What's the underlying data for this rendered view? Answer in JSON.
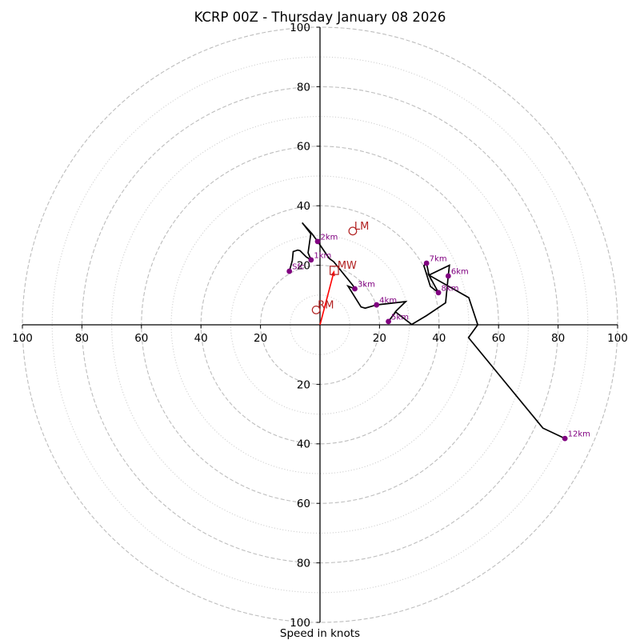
{
  "chart_data": {
    "type": "line",
    "subtype": "hodograph",
    "title": "KCRP 00Z - Thursday January 08 2026",
    "xlabel": "Speed in knots",
    "ylabel": "",
    "units": "knots",
    "xlim": [
      -100,
      100
    ],
    "ylim": [
      -100,
      100
    ],
    "grid": true,
    "rings": {
      "major": [
        20,
        40,
        60,
        80,
        100
      ],
      "minor": [
        10,
        30,
        50,
        70,
        90
      ]
    },
    "x_ticks": [
      {
        "value": -100,
        "label": "100"
      },
      {
        "value": -80,
        "label": "80"
      },
      {
        "value": -60,
        "label": "60"
      },
      {
        "value": -40,
        "label": "40"
      },
      {
        "value": -20,
        "label": "20"
      },
      {
        "value": 20,
        "label": "20"
      },
      {
        "value": 40,
        "label": "40"
      },
      {
        "value": 60,
        "label": "60"
      },
      {
        "value": 80,
        "label": "80"
      },
      {
        "value": 100,
        "label": "100"
      }
    ],
    "y_ticks": [
      {
        "value": 100,
        "label": "100"
      },
      {
        "value": 80,
        "label": "80"
      },
      {
        "value": 60,
        "label": "60"
      },
      {
        "value": 40,
        "label": "40"
      },
      {
        "value": 20,
        "label": "20"
      },
      {
        "value": -20,
        "label": "20"
      },
      {
        "value": -40,
        "label": "40"
      },
      {
        "value": -60,
        "label": "60"
      },
      {
        "value": -80,
        "label": "80"
      },
      {
        "value": -100,
        "label": "100"
      }
    ],
    "series": [
      {
        "name": "Hodograph",
        "points": [
          [
            -10.3,
            18.0
          ],
          [
            -9.3,
            21.6
          ],
          [
            -9.0,
            24.6
          ],
          [
            -7.5,
            25.1
          ],
          [
            -6.7,
            24.9
          ],
          [
            -4.6,
            22.8
          ],
          [
            -3.0,
            21.8
          ],
          [
            -4.0,
            24.2
          ],
          [
            -3.1,
            30.6
          ],
          [
            -6.0,
            34.3
          ],
          [
            -2.7,
            30.6
          ],
          [
            -0.8,
            28.0
          ],
          [
            3.1,
            22.3
          ],
          [
            4.6,
            21.2
          ],
          [
            11.0,
            13.3
          ],
          [
            11.7,
            12.1
          ],
          [
            9.4,
            13.0
          ],
          [
            13.8,
            6.0
          ],
          [
            15.2,
            5.6
          ],
          [
            19.0,
            6.7
          ],
          [
            28.8,
            7.8
          ],
          [
            25.5,
            4.6
          ],
          [
            23.0,
            1.1
          ],
          [
            25.4,
            4.3
          ],
          [
            30.8,
            0.1
          ],
          [
            35.8,
            3.1
          ],
          [
            42.2,
            7.4
          ],
          [
            43.1,
            16.4
          ],
          [
            43.5,
            20.0
          ],
          [
            36.6,
            16.7
          ],
          [
            35.8,
            20.7
          ],
          [
            34.9,
            19.9
          ],
          [
            37.1,
            12.9
          ],
          [
            39.8,
            10.8
          ],
          [
            36.6,
            16.7
          ],
          [
            50.0,
            9.1
          ],
          [
            53.0,
            0.0
          ],
          [
            49.9,
            -4.3
          ],
          [
            74.9,
            -34.7
          ],
          [
            82.3,
            -38.2
          ]
        ]
      }
    ],
    "height_markers": [
      {
        "label": "Sfc",
        "u": -10.3,
        "v": 18.0
      },
      {
        "label": "1km",
        "u": -3.0,
        "v": 21.8
      },
      {
        "label": "2km",
        "u": -0.8,
        "v": 28.0
      },
      {
        "label": "3km",
        "u": 11.7,
        "v": 12.1
      },
      {
        "label": "4km",
        "u": 19.0,
        "v": 6.7
      },
      {
        "label": "5km",
        "u": 23.0,
        "v": 1.1
      },
      {
        "label": "6km",
        "u": 43.1,
        "v": 16.4
      },
      {
        "label": "7km",
        "u": 35.8,
        "v": 20.7
      },
      {
        "label": "8km",
        "u": 39.8,
        "v": 10.8
      },
      {
        "label": "12km",
        "u": 82.3,
        "v": -38.2
      }
    ],
    "storm_motion": [
      {
        "label": "RM",
        "u": -1.3,
        "v": 5.0,
        "marker": "circle"
      },
      {
        "label": "LM",
        "u": 11.0,
        "v": 31.5,
        "marker": "circle"
      },
      {
        "label": "MW",
        "u": 4.8,
        "v": 18.3,
        "marker": "square"
      }
    ],
    "mean_wind_vector": {
      "u": 4.8,
      "v": 18.3
    }
  },
  "colors": {
    "hodograph": "#000000",
    "height_marker": "#800080",
    "storm_motion": "#b22222",
    "mean_wind_arrow": "#ff0000",
    "ring_major": "#bdbdbd",
    "ring_minor": "#cfcfcf",
    "axis": "#000000"
  }
}
